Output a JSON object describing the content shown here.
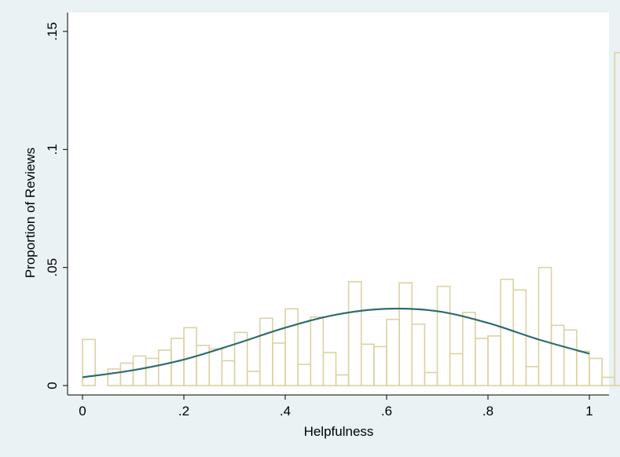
{
  "chart_data": {
    "type": "bar",
    "title": "",
    "xlabel": "Helpfulness",
    "ylabel": "Proportion of Reviews",
    "xlim": [
      0,
      1.04
    ],
    "ylim": [
      0,
      0.15
    ],
    "grid": false,
    "x_ticks": [
      {
        "value": 0,
        "label": "0"
      },
      {
        "value": 0.2,
        "label": ".2"
      },
      {
        "value": 0.4,
        "label": ".4"
      },
      {
        "value": 0.6,
        "label": ".6"
      },
      {
        "value": 0.8,
        "label": ".8"
      },
      {
        "value": 1.0,
        "label": "1"
      }
    ],
    "y_ticks": [
      {
        "value": 0,
        "label": "0"
      },
      {
        "value": 0.05,
        "label": ".05"
      },
      {
        "value": 0.1,
        "label": ".1"
      },
      {
        "value": 0.15,
        "label": ".15"
      }
    ],
    "bin_width": 0.025,
    "bin_start": 0,
    "bar_values": [
      0.0195,
      0.0,
      0.007,
      0.0095,
      0.0125,
      0.0115,
      0.015,
      0.02,
      0.0245,
      0.017,
      0.0155,
      0.0105,
      0.0225,
      0.006,
      0.0285,
      0.018,
      0.0325,
      0.009,
      0.029,
      0.014,
      0.0045,
      0.044,
      0.0175,
      0.0165,
      0.028,
      0.0435,
      0.026,
      0.0055,
      0.042,
      0.0135,
      0.031,
      0.02,
      0.021,
      0.045,
      0.0405,
      0.008,
      0.05,
      0.0255,
      0.0235,
      0.0145,
      0.0115,
      0.0035,
      0.141
    ],
    "density_curve": {
      "x": [
        0.0,
        0.1,
        0.2,
        0.3,
        0.4,
        0.5,
        0.6,
        0.7,
        0.8,
        0.9,
        1.0
      ],
      "y": [
        0.0035,
        0.0065,
        0.011,
        0.0175,
        0.0245,
        0.03,
        0.0325,
        0.0315,
        0.0265,
        0.0195,
        0.0135
      ]
    },
    "colors": {
      "background": "#eaf2f3",
      "plot_area": "#ffffff",
      "bar_outline": "#dbd2a4",
      "curve": "#2e6b6e"
    }
  }
}
